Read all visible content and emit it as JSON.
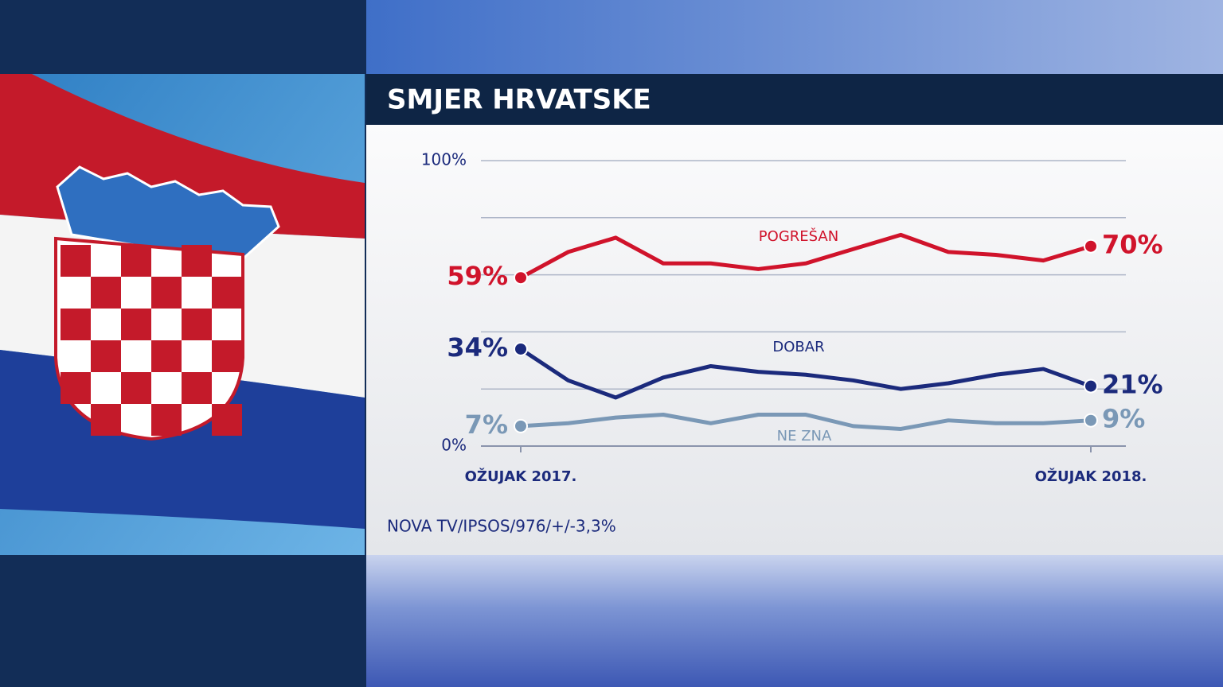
{
  "header": {
    "title": "SMJER HRVATSKE"
  },
  "chart_data": {
    "type": "line",
    "categories": [
      "OŽUJAK 2017.",
      null,
      null,
      null,
      null,
      null,
      null,
      null,
      null,
      null,
      null,
      null,
      "OŽUJAK 2018."
    ],
    "series": [
      {
        "name": "POGREŠAN",
        "color": "#d0132b",
        "values": [
          59,
          68,
          73,
          64,
          64,
          62,
          64,
          69,
          74,
          68,
          67,
          65,
          70
        ],
        "value_labels": [
          "59%",
          null,
          null,
          null,
          null,
          null,
          null,
          null,
          null,
          null,
          null,
          null,
          "70%"
        ]
      },
      {
        "name": "DOBAR",
        "color": "#1b2a7c",
        "values": [
          34,
          23,
          17,
          24,
          28,
          26,
          25,
          23,
          20,
          22,
          25,
          27,
          21
        ],
        "value_labels": [
          "34%",
          null,
          null,
          null,
          null,
          null,
          null,
          null,
          null,
          null,
          null,
          null,
          "21%"
        ]
      },
      {
        "name": "NE ZNA",
        "color": "#7a98b6",
        "values": [
          7,
          8,
          10,
          11,
          8,
          11,
          11,
          7,
          6,
          9,
          8,
          8,
          9
        ],
        "value_labels": [
          "7%",
          null,
          null,
          null,
          null,
          null,
          null,
          null,
          null,
          null,
          null,
          null,
          "9%"
        ]
      }
    ],
    "ylim": [
      0,
      100
    ],
    "yticks": [
      {
        "value": 0,
        "label": "0%"
      },
      {
        "value": 20,
        "label": null
      },
      {
        "value": 40,
        "label": null
      },
      {
        "value": 60,
        "label": null
      },
      {
        "value": 80,
        "label": null
      },
      {
        "value": 100,
        "label": "100%"
      }
    ],
    "grid": true
  },
  "footer": {
    "source": "NOVA TV/IPSOS/976/+/-3,3%"
  }
}
